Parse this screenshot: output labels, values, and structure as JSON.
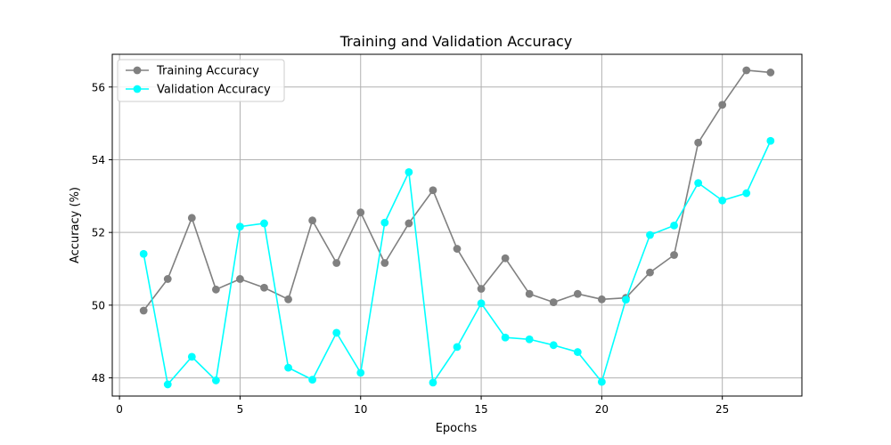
{
  "chart_data": {
    "type": "line",
    "title": "Training and Validation Accuracy",
    "xlabel": "Epochs",
    "ylabel": "Accuracy (%)",
    "xlim": [
      -0.3,
      28.3
    ],
    "ylim": [
      47.5,
      56.9
    ],
    "xticks": [
      0,
      5,
      10,
      15,
      20,
      25
    ],
    "yticks": [
      48,
      50,
      52,
      54,
      56
    ],
    "grid": true,
    "legend_position": "upper-left",
    "x": [
      1,
      2,
      3,
      4,
      5,
      6,
      7,
      8,
      9,
      10,
      11,
      12,
      13,
      14,
      15,
      16,
      17,
      18,
      19,
      20,
      21,
      22,
      23,
      24,
      25,
      26,
      27
    ],
    "series": [
      {
        "name": "Training Accuracy",
        "color": "#808080",
        "marker": "circle",
        "values": [
          49.85,
          50.72,
          52.4,
          50.43,
          50.72,
          50.48,
          50.16,
          52.33,
          51.16,
          52.55,
          51.16,
          52.25,
          53.16,
          51.55,
          50.45,
          51.29,
          50.31,
          50.08,
          50.31,
          50.16,
          50.2,
          50.9,
          51.38,
          54.47,
          55.51,
          56.46,
          56.4
        ]
      },
      {
        "name": "Validation Accuracy",
        "color": "#00FFFF",
        "marker": "circle",
        "values": [
          51.41,
          47.82,
          48.58,
          47.93,
          52.16,
          52.25,
          48.28,
          47.95,
          49.24,
          48.14,
          52.27,
          53.66,
          47.87,
          48.85,
          50.05,
          49.11,
          49.06,
          48.9,
          48.71,
          47.89,
          50.15,
          51.93,
          52.19,
          53.36,
          52.88,
          53.08,
          54.52
        ]
      }
    ]
  }
}
